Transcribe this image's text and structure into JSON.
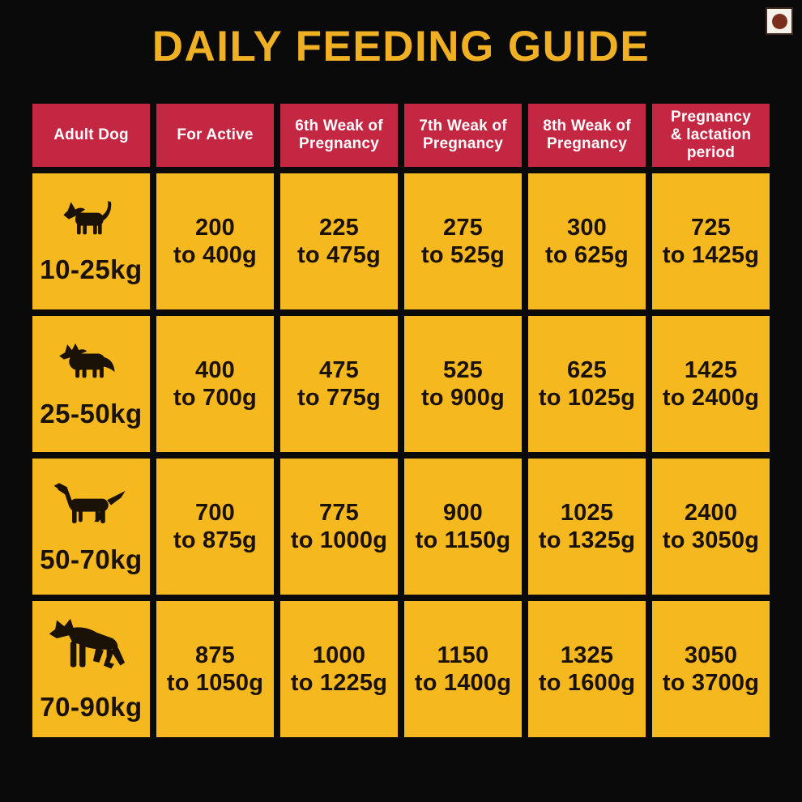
{
  "page": {
    "title": "DAILY FEEDING GUIDE",
    "colors": {
      "background": "#0a0a0a",
      "title": "#f0b024",
      "header_bg": "#c42742",
      "header_text": "#ffffff",
      "cell_bg": "#f6b81f",
      "cell_text": "#1a1206"
    }
  },
  "non_veg_mark": {
    "icon": "non-veg-dot-icon",
    "box_color": "#f6f2ea",
    "dot_color": "#7c2e1c"
  },
  "table": {
    "headers": [
      {
        "label": "Adult Dog"
      },
      {
        "label": "For Active"
      },
      {
        "label": "6th Weak of\nPregnancy"
      },
      {
        "label": "7th Weak of\nPregnancy"
      },
      {
        "label": "8th Weak of\nPregnancy"
      },
      {
        "label": "Pregnancy\n& lactation\nperiod"
      }
    ],
    "rows": [
      {
        "icon": "terrier-dog-icon",
        "weight": "10-25kg",
        "cells": [
          "200\nto 400g",
          "225\nto 475g",
          "275\nto 525g",
          "300\nto 625g",
          "725\nto 1425g"
        ]
      },
      {
        "icon": "collie-dog-icon",
        "weight": "25-50kg",
        "cells": [
          "400\nto 700g",
          "475\nto 775g",
          "525\nto 900g",
          "625\nto 1025g",
          "1425\nto 2400g"
        ]
      },
      {
        "icon": "setter-dog-icon",
        "weight": "50-70kg",
        "cells": [
          "700\nto 875g",
          "775\nto 1000g",
          "900\nto 1150g",
          "1025\nto 1325g",
          "2400\nto 3050g"
        ]
      },
      {
        "icon": "shepherd-dog-icon",
        "weight": "70-90kg",
        "cells": [
          "875\nto 1050g",
          "1000\nto 1225g",
          "1150\nto 1400g",
          "1325\nto 1600g",
          "3050\nto 3700g"
        ]
      }
    ]
  },
  "chart_data": {
    "type": "table",
    "title": "DAILY FEEDING GUIDE",
    "columns": [
      "Adult Dog",
      "For Active",
      "6th Weak of Pregnancy",
      "7th Weak of Pregnancy",
      "8th Weak of Pregnancy",
      "Pregnancy & lactation period"
    ],
    "rows": [
      [
        "10-25kg",
        "200 to 400g",
        "225 to 475g",
        "275 to 525g",
        "300 to 625g",
        "725 to 1425g"
      ],
      [
        "25-50kg",
        "400 to 700g",
        "475 to 775g",
        "525 to 900g",
        "625 to 1025g",
        "1425 to 2400g"
      ],
      [
        "50-70kg",
        "700 to 875g",
        "775 to 1000g",
        "900 to 1150g",
        "1025 to 1325g",
        "2400 to 3050g"
      ],
      [
        "70-90kg",
        "875 to 1050g",
        "1000 to 1225g",
        "1150 to 1400g",
        "1325 to 1600g",
        "3050 to 3700g"
      ]
    ]
  }
}
